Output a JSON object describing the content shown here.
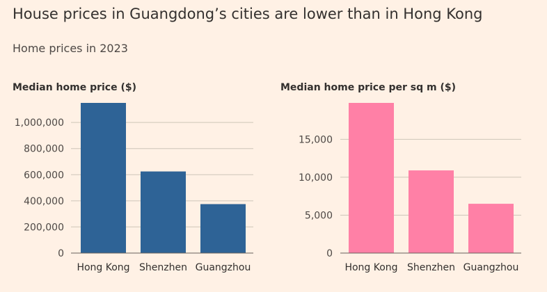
{
  "title": "House prices in Guangdong’s cities are lower than in Hong Kong",
  "subtitle": "Home prices in 2023",
  "colors": {
    "background": "#FFF1E5",
    "left_bars": "#2E6396",
    "right_bars": "#FF80A6"
  },
  "chart_data": [
    {
      "type": "bar",
      "title": "Median home price ($)",
      "categories": [
        "Hong Kong",
        "Shenzhen",
        "Guangzhou"
      ],
      "values": [
        1150000,
        625000,
        375000
      ],
      "ylim": [
        0,
        1150000
      ],
      "yticks": [
        0,
        200000,
        400000,
        600000,
        800000,
        1000000
      ],
      "ytick_labels": [
        "0",
        "200,000",
        "400,000",
        "600,000",
        "800,000",
        "1,000,000"
      ],
      "grid": true,
      "color": "#2E6396"
    },
    {
      "type": "bar",
      "title": "Median home price per sq m ($)",
      "categories": [
        "Hong Kong",
        "Shenzhen",
        "Guangzhou"
      ],
      "values": [
        19800,
        10900,
        6500
      ],
      "ylim": [
        0,
        19800
      ],
      "yticks": [
        0,
        5000,
        10000,
        15000
      ],
      "ytick_labels": [
        "0",
        "5,000",
        "10,000",
        "15,000"
      ],
      "grid": true,
      "color": "#FF80A6"
    }
  ]
}
